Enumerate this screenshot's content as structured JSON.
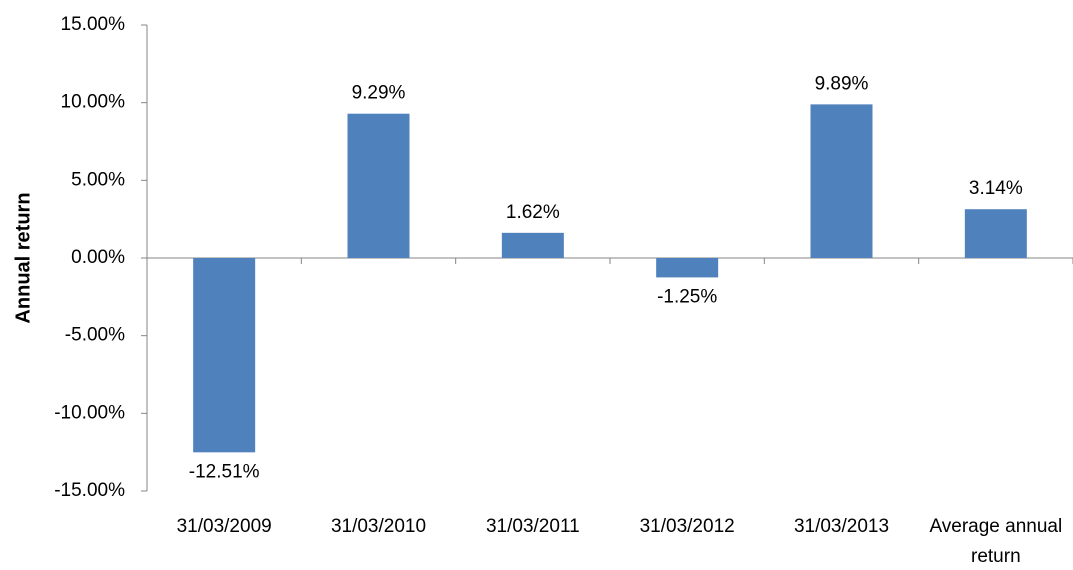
{
  "chart_data": {
    "type": "bar",
    "y_label": "Annual return",
    "categories": [
      "31/03/2009",
      "31/03/2010",
      "31/03/2011",
      "31/03/2012",
      "31/03/2013",
      "Average annual return"
    ],
    "values": [
      -12.51,
      9.29,
      1.62,
      -1.25,
      9.89,
      3.14
    ],
    "value_labels": [
      "-12.51%",
      "9.29%",
      "1.62%",
      "-1.25%",
      "9.89%",
      "3.14%"
    ],
    "color": "#4f81bd",
    "ylim": [
      -15,
      15
    ],
    "yticks": [
      {
        "value": -15,
        "label": "-15.00%"
      },
      {
        "value": -10,
        "label": "-10.00%"
      },
      {
        "value": -5,
        "label": "-5.00%"
      },
      {
        "value": 0,
        "label": "0.00%"
      },
      {
        "value": 5,
        "label": "5.00%"
      },
      {
        "value": 10,
        "label": "10.00%"
      },
      {
        "value": 15,
        "label": "15.00%"
      }
    ],
    "grid": false
  }
}
